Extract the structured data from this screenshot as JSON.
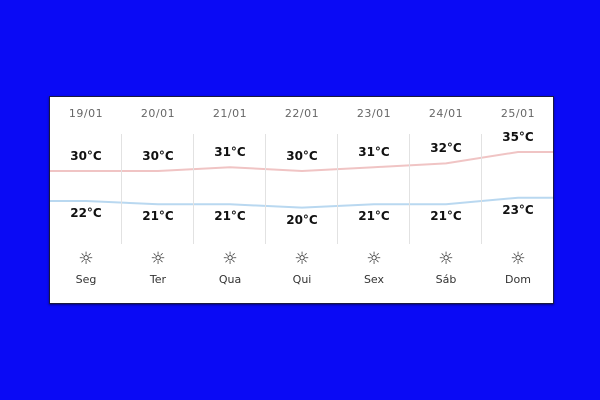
{
  "colors": {
    "background": "#0a0af5",
    "high_line": "#f0c4c4",
    "low_line": "#b9d8f0"
  },
  "unit": "°C",
  "days": [
    {
      "date": "19/01",
      "day": "Seg",
      "high": 30,
      "low": 22,
      "high_label": "30°C",
      "low_label": "22°C",
      "icon": "sun-icon"
    },
    {
      "date": "20/01",
      "day": "Ter",
      "high": 30,
      "low": 21,
      "high_label": "30°C",
      "low_label": "21°C",
      "icon": "sun-icon"
    },
    {
      "date": "21/01",
      "day": "Qua",
      "high": 31,
      "low": 21,
      "high_label": "31°C",
      "low_label": "21°C",
      "icon": "sun-icon"
    },
    {
      "date": "22/01",
      "day": "Qui",
      "high": 30,
      "low": 20,
      "high_label": "30°C",
      "low_label": "20°C",
      "icon": "sun-icon"
    },
    {
      "date": "23/01",
      "day": "Sex",
      "high": 31,
      "low": 21,
      "high_label": "31°C",
      "low_label": "21°C",
      "icon": "sun-icon"
    },
    {
      "date": "24/01",
      "day": "Sáb",
      "high": 32,
      "low": 21,
      "high_label": "32°C",
      "low_label": "21°C",
      "icon": "sun-icon"
    },
    {
      "date": "25/01",
      "day": "Dom",
      "high": 35,
      "low": 23,
      "high_label": "35°C",
      "low_label": "23°C",
      "icon": "sun-icon"
    }
  ]
}
